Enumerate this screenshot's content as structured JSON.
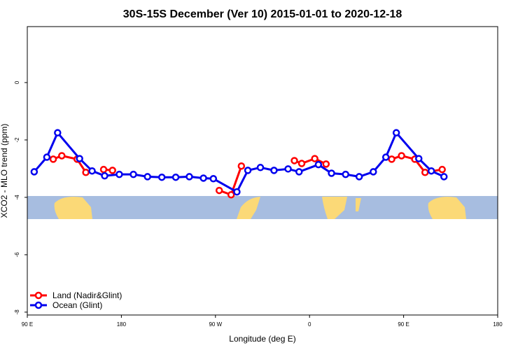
{
  "chart_data": {
    "type": "line",
    "title": "30S-15S December (Ver 10)   2015-01-01 to 2020-12-18",
    "x_label": "Longitude (deg E)",
    "y_label": "XCO2 - MLO trend (ppm)",
    "xlim": [
      90,
      540
    ],
    "ylim": [
      -8.1,
      1.95
    ],
    "xticks": [
      {
        "value": 90,
        "label": "90 E"
      },
      {
        "value": 180,
        "label": "180"
      },
      {
        "value": 270,
        "label": "90 W"
      },
      {
        "value": 360,
        "label": "0"
      },
      {
        "value": 450,
        "label": "90 E"
      },
      {
        "value": 540,
        "label": "180"
      }
    ],
    "yticks": [
      0,
      -2,
      -4,
      -6,
      -8
    ],
    "legend": "bottom-left",
    "series": [
      {
        "name": "Land (Nadir&Glint)",
        "color": "#ff0000",
        "x": [
          114.8,
          123,
          137.7,
          146,
          null,
          163,
          171.5,
          null,
          273.6,
          285,
          294.8,
          null,
          345.5,
          352.5,
          365,
          375.8,
          null,
          438.6,
          448,
          460.7,
          470.5,
          486.9
        ],
        "values": [
          -2.67,
          -2.55,
          -2.67,
          -3.13,
          null,
          -3.03,
          -3.06,
          null,
          -3.76,
          -3.91,
          -2.91,
          null,
          -2.72,
          -2.82,
          -2.65,
          -2.84,
          null,
          -2.67,
          -2.55,
          -2.67,
          -3.13,
          -3.03
        ]
      },
      {
        "name": "Ocean (Glint)",
        "color": "#0000ee",
        "x": [
          96.6,
          108.7,
          119,
          140,
          152,
          164,
          178,
          191.5,
          205,
          218.7,
          232,
          245,
          258.5,
          268,
          290.5,
          301,
          313,
          326,
          339.5,
          350,
          368.5,
          381,
          394.5,
          407.5,
          421,
          433,
          443,
          464.5,
          476.5,
          488.6
        ],
        "values": [
          -3.11,
          -2.6,
          -1.75,
          -2.65,
          -3.08,
          -3.25,
          -3.2,
          -3.2,
          -3.28,
          -3.3,
          -3.3,
          -3.28,
          -3.33,
          -3.35,
          -3.81,
          -3.06,
          -2.96,
          -3.06,
          -3.01,
          -3.11,
          -2.86,
          -3.16,
          -3.2,
          -3.28,
          -3.11,
          -2.6,
          -1.75,
          -2.65,
          -3.08,
          -3.28
        ]
      }
    ]
  }
}
